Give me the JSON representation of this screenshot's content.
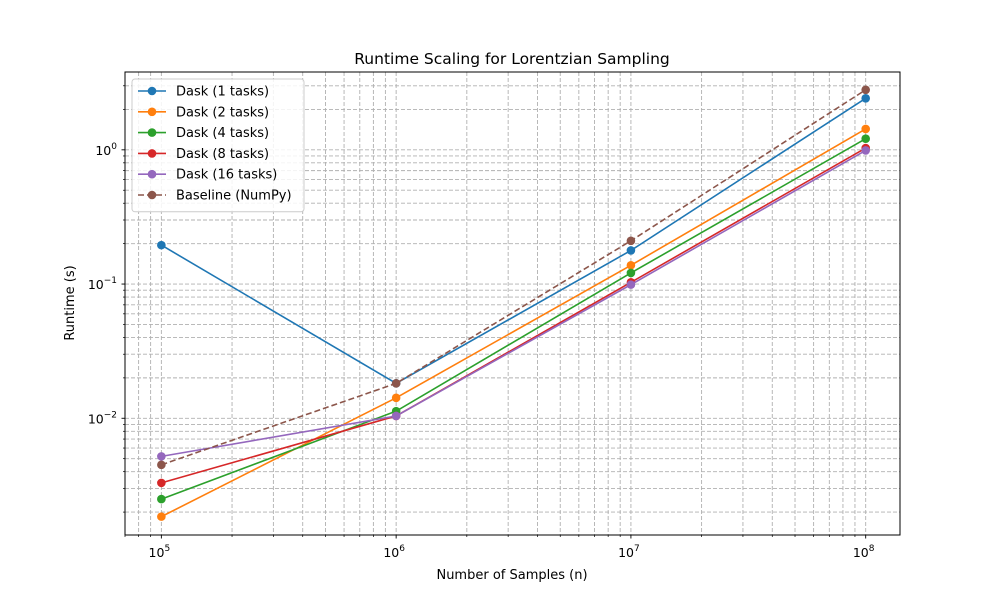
{
  "chart_data": {
    "type": "line",
    "title": "Runtime Scaling for Lorentzian Sampling",
    "xlabel": "Number of Samples (n)",
    "ylabel": "Runtime (s)",
    "xscale": "log",
    "yscale": "log",
    "xlim": [
      70000,
      140000000
    ],
    "ylim": [
      0.00135,
      3.8
    ],
    "grid": "major and minor, dashed",
    "legend_position": "top-left",
    "x": [
      100000,
      1000000,
      10000000,
      100000000
    ],
    "x_tick_labels": [
      {
        "value": 100000,
        "base": "10",
        "exp": "5"
      },
      {
        "value": 1000000,
        "base": "10",
        "exp": "6"
      },
      {
        "value": 10000000,
        "base": "10",
        "exp": "7"
      },
      {
        "value": 100000000,
        "base": "10",
        "exp": "8"
      }
    ],
    "y_tick_labels": [
      {
        "value": 0.01,
        "base": "10",
        "exp": "−2"
      },
      {
        "value": 0.1,
        "base": "10",
        "exp": "−1"
      },
      {
        "value": 1,
        "base": "10",
        "exp": "0"
      }
    ],
    "series": [
      {
        "name": "Dask (1 tasks)",
        "color": "#1f77b4",
        "dashed": false,
        "values": [
          0.195,
          0.0182,
          0.178,
          2.42
        ]
      },
      {
        "name": "Dask (2 tasks)",
        "color": "#ff7f0e",
        "dashed": false,
        "values": [
          0.00185,
          0.0142,
          0.138,
          1.43
        ]
      },
      {
        "name": "Dask (4 tasks)",
        "color": "#2ca02c",
        "dashed": false,
        "values": [
          0.0025,
          0.0113,
          0.121,
          1.21
        ]
      },
      {
        "name": "Dask (8 tasks)",
        "color": "#d62728",
        "dashed": false,
        "values": [
          0.0033,
          0.0104,
          0.103,
          1.03
        ]
      },
      {
        "name": "Dask (16 tasks)",
        "color": "#9467bd",
        "dashed": false,
        "values": [
          0.0052,
          0.0104,
          0.099,
          0.99
        ]
      },
      {
        "name": "Baseline (NumPy)",
        "color": "#8c564b",
        "dashed": true,
        "values": [
          0.0045,
          0.0182,
          0.21,
          2.8
        ]
      }
    ]
  }
}
